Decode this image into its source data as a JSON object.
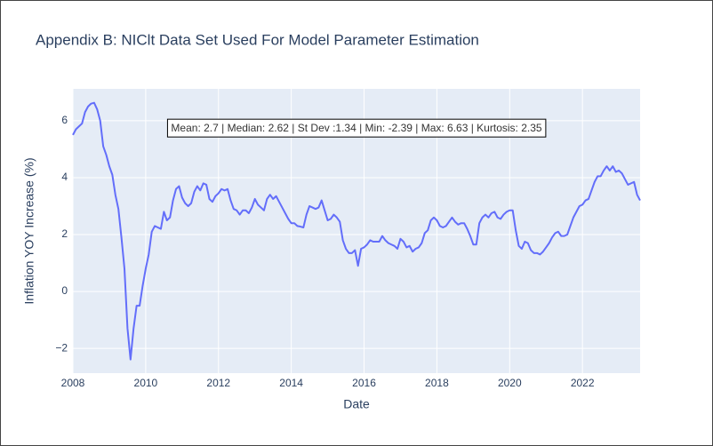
{
  "chart_data": {
    "type": "line",
    "title": "Appendix B: NIClt Data Set Used For Model Parameter Estimation",
    "xlabel": "Date",
    "ylabel": "Inflation YOY Increase (%)",
    "annotation": "Mean: 2.7 | Median: 2.62 | St Dev :1.34 | Min: -2.39 | Max: 6.63 | Kurtosis: 2.35",
    "grid": true,
    "xlim": [
      "2008-01",
      "2023-08"
    ],
    "ylim": [
      -2.87,
      7.12
    ],
    "xticks": [
      "2008",
      "2010",
      "2012",
      "2014",
      "2016",
      "2018",
      "2020",
      "2022"
    ],
    "yticks": [
      {
        "value": -2,
        "label": "−2"
      },
      0,
      2,
      4,
      6
    ],
    "x": [
      "2008-01",
      "2008-02",
      "2008-03",
      "2008-04",
      "2008-05",
      "2008-06",
      "2008-07",
      "2008-08",
      "2008-09",
      "2008-10",
      "2008-11",
      "2008-12",
      "2009-01",
      "2009-02",
      "2009-03",
      "2009-04",
      "2009-05",
      "2009-06",
      "2009-07",
      "2009-08",
      "2009-09",
      "2009-10",
      "2009-11",
      "2009-12",
      "2010-01",
      "2010-02",
      "2010-03",
      "2010-04",
      "2010-05",
      "2010-06",
      "2010-07",
      "2010-08",
      "2010-09",
      "2010-10",
      "2010-11",
      "2010-12",
      "2011-01",
      "2011-02",
      "2011-03",
      "2011-04",
      "2011-05",
      "2011-06",
      "2011-07",
      "2011-08",
      "2011-09",
      "2011-10",
      "2011-11",
      "2011-12",
      "2012-01",
      "2012-02",
      "2012-03",
      "2012-04",
      "2012-05",
      "2012-06",
      "2012-07",
      "2012-08",
      "2012-09",
      "2012-10",
      "2012-11",
      "2012-12",
      "2013-01",
      "2013-02",
      "2013-03",
      "2013-04",
      "2013-05",
      "2013-06",
      "2013-07",
      "2013-08",
      "2013-09",
      "2013-10",
      "2013-11",
      "2013-12",
      "2014-01",
      "2014-02",
      "2014-03",
      "2014-04",
      "2014-05",
      "2014-06",
      "2014-07",
      "2014-08",
      "2014-09",
      "2014-10",
      "2014-11",
      "2014-12",
      "2015-01",
      "2015-02",
      "2015-03",
      "2015-04",
      "2015-05",
      "2015-06",
      "2015-07",
      "2015-08",
      "2015-09",
      "2015-10",
      "2015-11",
      "2015-12",
      "2016-01",
      "2016-02",
      "2016-03",
      "2016-04",
      "2016-05",
      "2016-06",
      "2016-07",
      "2016-08",
      "2016-09",
      "2016-10",
      "2016-11",
      "2016-12",
      "2017-01",
      "2017-02",
      "2017-03",
      "2017-04",
      "2017-05",
      "2017-06",
      "2017-07",
      "2017-08",
      "2017-09",
      "2017-10",
      "2017-11",
      "2017-12",
      "2018-01",
      "2018-02",
      "2018-03",
      "2018-04",
      "2018-05",
      "2018-06",
      "2018-07",
      "2018-08",
      "2018-09",
      "2018-10",
      "2018-11",
      "2018-12",
      "2019-01",
      "2019-02",
      "2019-03",
      "2019-04",
      "2019-05",
      "2019-06",
      "2019-07",
      "2019-08",
      "2019-09",
      "2019-10",
      "2019-11",
      "2019-12",
      "2020-01",
      "2020-02",
      "2020-03",
      "2020-04",
      "2020-05",
      "2020-06",
      "2020-07",
      "2020-08",
      "2020-09",
      "2020-10",
      "2020-11",
      "2020-12",
      "2021-01",
      "2021-02",
      "2021-03",
      "2021-04",
      "2021-05",
      "2021-06",
      "2021-07",
      "2021-08",
      "2021-09",
      "2021-10",
      "2021-11",
      "2021-12",
      "2022-01",
      "2022-02",
      "2022-03",
      "2022-04",
      "2022-05",
      "2022-06",
      "2022-07",
      "2022-08",
      "2022-09",
      "2022-10",
      "2022-11",
      "2022-12",
      "2023-01",
      "2023-02",
      "2023-03",
      "2023-04",
      "2023-05",
      "2023-06",
      "2023-07",
      "2023-08"
    ],
    "series": [
      {
        "color": "#636efa",
        "values": [
          5.5,
          5.7,
          5.8,
          5.9,
          6.3,
          6.5,
          6.6,
          6.63,
          6.4,
          6.0,
          5.1,
          4.8,
          4.4,
          4.1,
          3.4,
          2.9,
          1.9,
          0.8,
          -1.3,
          -2.39,
          -1.3,
          -0.5,
          -0.5,
          0.2,
          0.8,
          1.3,
          2.1,
          2.3,
          2.25,
          2.2,
          2.8,
          2.5,
          2.6,
          3.2,
          3.6,
          3.7,
          3.3,
          3.1,
          3.0,
          3.1,
          3.5,
          3.7,
          3.55,
          3.8,
          3.75,
          3.25,
          3.15,
          3.35,
          3.45,
          3.6,
          3.55,
          3.6,
          3.2,
          2.9,
          2.85,
          2.7,
          2.85,
          2.85,
          2.75,
          2.95,
          3.25,
          3.05,
          2.95,
          2.85,
          3.25,
          3.4,
          3.25,
          3.35,
          3.15,
          2.95,
          2.75,
          2.55,
          2.4,
          2.4,
          2.3,
          2.28,
          2.25,
          2.7,
          3.0,
          2.95,
          2.9,
          2.95,
          3.2,
          2.85,
          2.5,
          2.55,
          2.7,
          2.6,
          2.45,
          1.8,
          1.5,
          1.35,
          1.35,
          1.45,
          0.9,
          1.5,
          1.55,
          1.65,
          1.8,
          1.75,
          1.75,
          1.75,
          1.95,
          1.8,
          1.7,
          1.65,
          1.6,
          1.5,
          1.85,
          1.75,
          1.55,
          1.6,
          1.4,
          1.5,
          1.55,
          1.7,
          2.05,
          2.15,
          2.5,
          2.6,
          2.5,
          2.3,
          2.25,
          2.3,
          2.45,
          2.6,
          2.45,
          2.35,
          2.4,
          2.4,
          2.2,
          1.95,
          1.65,
          1.65,
          2.4,
          2.6,
          2.7,
          2.6,
          2.75,
          2.8,
          2.6,
          2.55,
          2.7,
          2.8,
          2.85,
          2.85,
          2.15,
          1.6,
          1.5,
          1.75,
          1.7,
          1.45,
          1.35,
          1.35,
          1.3,
          1.4,
          1.55,
          1.7,
          1.9,
          2.05,
          2.1,
          1.95,
          1.95,
          2.0,
          2.3,
          2.6,
          2.8,
          3.0,
          3.05,
          3.2,
          3.25,
          3.55,
          3.85,
          4.05,
          4.05,
          4.25,
          4.4,
          4.25,
          4.4,
          4.2,
          4.25,
          4.15,
          3.95,
          3.75,
          3.8,
          3.85,
          3.4,
          3.2
        ]
      }
    ]
  }
}
